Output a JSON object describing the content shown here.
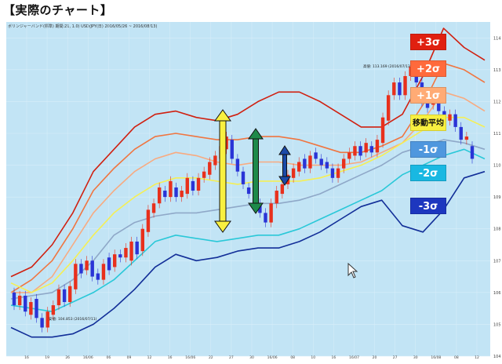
{
  "page_title": "【実際のチャート】",
  "chart_header": "ボリンジャーバンド(標準) 期間:21, 1.0)    USD/JPY(日) 2016/05/26 ~ 2016/08/13)",
  "annotations": {
    "high": "高値: 113.169 (2016/07/13)",
    "low": "安値: 104.853 (2016/07/11)"
  },
  "legend": [
    {
      "label": "+3σ",
      "color": "#e02010",
      "dark": false,
      "ma": false
    },
    {
      "label": "+2σ",
      "color": "#ff6a3c",
      "dark": false,
      "ma": false
    },
    {
      "label": "+1σ",
      "color": "#ffab75",
      "dark": false,
      "ma": false
    },
    {
      "label": "移動平均",
      "color": "#f8f040",
      "dark": true,
      "ma": true
    },
    {
      "label": "-1σ",
      "color": "#4f97de",
      "dark": false,
      "ma": false
    },
    {
      "label": "-2σ",
      "color": "#19b8e2",
      "dark": false,
      "ma": false
    },
    {
      "label": "-3σ",
      "color": "#1d37bf",
      "dark": false,
      "ma": false
    }
  ],
  "colors": {
    "background": "#c2e4f5",
    "up_candle": "#e8301c",
    "down_candle": "#2a34d6",
    "arrow_3sigma": "#f8f040",
    "arrow_2sigma": "#1e8a4a",
    "arrow_1sigma": "#1b4aa8"
  },
  "chart_data": {
    "type": "line",
    "title": "USD/JPY(日)",
    "ylim": [
      104,
      114.5
    ],
    "y_ticks": [
      "114",
      "113",
      "112",
      "111",
      "110",
      "109",
      "108",
      "107",
      "106",
      "105",
      "104"
    ],
    "x_ticks": [
      "16",
      "19",
      "26",
      "16/06",
      "06",
      "09",
      "12",
      "16",
      "16/06",
      "22",
      "27",
      "30",
      "16/06",
      "08",
      "10",
      "16",
      "16/07",
      "20",
      "27",
      "30",
      "16/08",
      "08",
      "12"
    ],
    "series": [
      {
        "name": "+3σ",
        "color": "#d02010",
        "values": [
          106.5,
          106.8,
          107.5,
          108.5,
          109.8,
          110.5,
          111.2,
          111.6,
          111.7,
          111.5,
          111.4,
          111.6,
          112.0,
          112.3,
          112.3,
          112.0,
          111.6,
          111.2,
          111.2,
          111.6,
          112.8,
          114.3,
          113.7,
          113.3
        ]
      },
      {
        "name": "+2σ",
        "color": "#f07540",
        "values": [
          106.0,
          106.4,
          107.0,
          108.0,
          109.2,
          109.9,
          110.5,
          110.9,
          111.0,
          110.9,
          110.8,
          110.8,
          110.9,
          110.9,
          110.8,
          110.6,
          110.4,
          110.4,
          110.6,
          110.9,
          111.9,
          113.2,
          113.0,
          112.6
        ]
      },
      {
        "name": "+1σ",
        "color": "#f8aa80",
        "values": [
          106.0,
          106.0,
          106.5,
          107.5,
          108.5,
          109.2,
          109.8,
          110.2,
          110.4,
          110.3,
          110.1,
          110.0,
          110.1,
          110.1,
          110.0,
          110.0,
          110.0,
          110.1,
          110.4,
          110.7,
          111.4,
          112.3,
          112.1,
          111.7
        ]
      },
      {
        "name": "移動平均",
        "color": "#f5ef55",
        "values": [
          106.3,
          106.0,
          106.3,
          107.0,
          107.8,
          108.5,
          109.0,
          109.4,
          109.6,
          109.6,
          109.5,
          109.4,
          109.5,
          109.5,
          109.5,
          109.6,
          109.8,
          110.0,
          110.3,
          110.7,
          111.1,
          111.5,
          111.5,
          111.2
        ]
      },
      {
        "name": "-1σ",
        "color": "#8fa8c8",
        "values": [
          105.8,
          105.9,
          106.0,
          106.4,
          107.0,
          107.8,
          108.2,
          108.4,
          108.5,
          108.5,
          108.6,
          108.7,
          108.8,
          108.8,
          108.9,
          109.1,
          109.4,
          109.7,
          110.0,
          110.4,
          110.6,
          110.8,
          110.7,
          110.5
        ]
      },
      {
        "name": "-2σ",
        "color": "#2ac8d8",
        "values": [
          105.6,
          105.5,
          105.4,
          105.7,
          106.0,
          106.4,
          107.0,
          107.6,
          107.8,
          107.7,
          107.6,
          107.7,
          107.8,
          107.8,
          108.0,
          108.3,
          108.6,
          108.9,
          109.2,
          109.7,
          110.0,
          110.3,
          110.5,
          110.2
        ]
      },
      {
        "name": "-3σ",
        "color": "#122e98",
        "values": [
          104.9,
          104.6,
          104.6,
          104.7,
          105.0,
          105.5,
          106.1,
          106.8,
          107.2,
          107.0,
          107.1,
          107.3,
          107.4,
          107.4,
          107.6,
          107.9,
          108.3,
          108.7,
          108.9,
          108.1,
          107.9,
          108.6,
          109.6,
          109.8
        ]
      }
    ],
    "candles": [
      {
        "o": 106.0,
        "c": 105.6
      },
      {
        "o": 105.6,
        "c": 105.9
      },
      {
        "o": 105.9,
        "c": 105.4
      },
      {
        "o": 105.3,
        "c": 105.7
      },
      {
        "o": 105.8,
        "c": 105.2
      },
      {
        "o": 105.2,
        "c": 104.9
      },
      {
        "o": 104.9,
        "c": 105.4
      },
      {
        "o": 105.3,
        "c": 105.6
      },
      {
        "o": 105.6,
        "c": 106.1
      },
      {
        "o": 106.1,
        "c": 105.7
      },
      {
        "o": 105.7,
        "c": 106.2
      },
      {
        "o": 106.1,
        "c": 106.9
      },
      {
        "o": 106.9,
        "c": 106.6
      },
      {
        "o": 106.7,
        "c": 107.0
      },
      {
        "o": 107.0,
        "c": 106.5
      },
      {
        "o": 106.6,
        "c": 106.4
      },
      {
        "o": 106.4,
        "c": 106.9
      },
      {
        "o": 107.1,
        "c": 106.7
      },
      {
        "o": 106.8,
        "c": 107.2
      },
      {
        "o": 107.2,
        "c": 107.1
      },
      {
        "o": 107.1,
        "c": 107.4
      },
      {
        "o": 107.0,
        "c": 107.6
      },
      {
        "o": 107.6,
        "c": 107.2
      },
      {
        "o": 107.3,
        "c": 108.0
      },
      {
        "o": 107.9,
        "c": 108.6
      },
      {
        "o": 108.5,
        "c": 108.8
      },
      {
        "o": 108.8,
        "c": 109.3
      },
      {
        "o": 109.2,
        "c": 109.0
      },
      {
        "o": 109.0,
        "c": 109.5
      },
      {
        "o": 109.3,
        "c": 109.0
      },
      {
        "o": 109.0,
        "c": 109.2
      },
      {
        "o": 109.1,
        "c": 109.6
      },
      {
        "o": 109.5,
        "c": 109.2
      },
      {
        "o": 109.2,
        "c": 109.6
      },
      {
        "o": 109.6,
        "c": 109.8
      },
      {
        "o": 109.7,
        "c": 110.1
      },
      {
        "o": 110.0,
        "c": 110.3
      },
      {
        "o": 110.2,
        "c": 110.6
      },
      {
        "o": 110.5,
        "c": 110.9
      },
      {
        "o": 110.8,
        "c": 110.2
      },
      {
        "o": 110.2,
        "c": 109.8
      },
      {
        "o": 109.8,
        "c": 109.4
      },
      {
        "o": 109.3,
        "c": 109.1
      },
      {
        "o": 109.0,
        "c": 108.7
      },
      {
        "o": 108.8,
        "c": 108.5
      },
      {
        "o": 108.5,
        "c": 108.2
      },
      {
        "o": 108.2,
        "c": 108.8
      },
      {
        "o": 108.8,
        "c": 109.2
      },
      {
        "o": 109.1,
        "c": 109.4
      },
      {
        "o": 109.4,
        "c": 109.7
      },
      {
        "o": 109.6,
        "c": 109.9
      },
      {
        "o": 109.8,
        "c": 110.1
      },
      {
        "o": 110.2,
        "c": 109.9
      },
      {
        "o": 109.9,
        "c": 110.3
      },
      {
        "o": 110.4,
        "c": 110.2
      },
      {
        "o": 110.2,
        "c": 110.0
      },
      {
        "o": 110.1,
        "c": 109.9
      },
      {
        "o": 109.9,
        "c": 109.6
      },
      {
        "o": 109.6,
        "c": 109.9
      },
      {
        "o": 109.9,
        "c": 110.2
      },
      {
        "o": 110.2,
        "c": 110.4
      },
      {
        "o": 110.3,
        "c": 110.6
      },
      {
        "o": 110.6,
        "c": 110.3
      },
      {
        "o": 110.4,
        "c": 110.7
      },
      {
        "o": 110.6,
        "c": 110.4
      },
      {
        "o": 110.4,
        "c": 110.8
      },
      {
        "o": 110.7,
        "c": 111.5
      },
      {
        "o": 111.4,
        "c": 112.2
      },
      {
        "o": 112.2,
        "c": 112.6
      },
      {
        "o": 112.6,
        "c": 112.2
      },
      {
        "o": 112.2,
        "c": 112.8
      },
      {
        "o": 112.8,
        "c": 113.1
      },
      {
        "o": 113.1,
        "c": 112.6
      },
      {
        "o": 112.6,
        "c": 112.0
      },
      {
        "o": 112.0,
        "c": 111.8
      },
      {
        "o": 111.9,
        "c": 112.1
      },
      {
        "o": 112.1,
        "c": 111.7
      },
      {
        "o": 111.7,
        "c": 111.4
      },
      {
        "o": 111.4,
        "c": 111.6
      },
      {
        "o": 111.6,
        "c": 111.2
      },
      {
        "o": 111.2,
        "c": 110.8
      },
      {
        "o": 110.8,
        "c": 110.9
      },
      {
        "o": 110.6,
        "c": 110.2
      }
    ]
  }
}
